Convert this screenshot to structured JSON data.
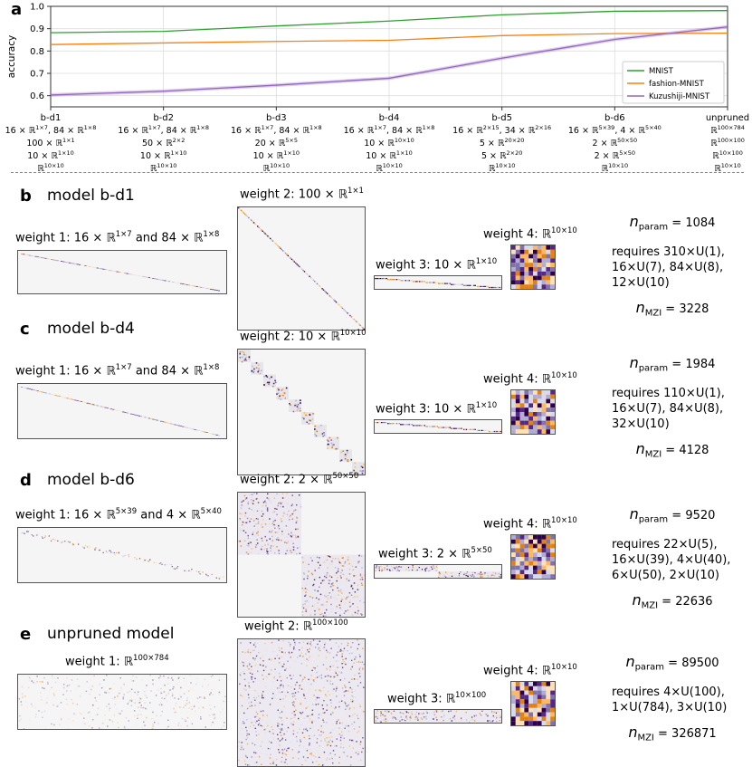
{
  "panel_a": {
    "letter": "a",
    "chart_data": {
      "type": "line",
      "ylabel": "accuracy",
      "ylim": [
        0.55,
        1.0
      ],
      "yticks": [
        "1.0",
        "0.9",
        "0.8",
        "0.7",
        "0.6"
      ],
      "categories": [
        "b-d1",
        "b-d2",
        "b-d3",
        "b-d4",
        "b-d5",
        "b-d6",
        "unpruned"
      ],
      "category_details": [
        [
          "16 × ℝ<sup>1×7</sup>, 84 × ℝ<sup>1×8</sup>",
          "100 × ℝ<sup>1×1</sup>",
          "10 × ℝ<sup>1×10</sup>",
          "ℝ<sup>10×10</sup>"
        ],
        [
          "16 × ℝ<sup>1×7</sup>, 84 × ℝ<sup>1×8</sup>",
          "50 × ℝ<sup>2×2</sup>",
          "10 × ℝ<sup>1×10</sup>",
          "ℝ<sup>10×10</sup>"
        ],
        [
          "16 × ℝ<sup>1×7</sup>, 84 × ℝ<sup>1×8</sup>",
          "20 × ℝ<sup>5×5</sup>",
          "10 × ℝ<sup>1×10</sup>",
          "ℝ<sup>10×10</sup>"
        ],
        [
          "16 × ℝ<sup>1×7</sup>, 84 × ℝ<sup>1×8</sup>",
          "10 × ℝ<sup>10×10</sup>",
          "10 × ℝ<sup>1×10</sup>",
          "ℝ<sup>10×10</sup>"
        ],
        [
          "16 × ℝ<sup>2×15</sup>, 34 × ℝ<sup>2×16</sup>",
          "5 × ℝ<sup>20×20</sup>",
          "5 × ℝ<sup>2×20</sup>",
          "ℝ<sup>10×10</sup>"
        ],
        [
          "16 × ℝ<sup>5×39</sup>, 4 × ℝ<sup>5×40</sup>",
          "2 × ℝ<sup>50×50</sup>",
          "2 × ℝ<sup>5×50</sup>",
          "ℝ<sup>10×10</sup>"
        ],
        [
          "ℝ<sup>100×784</sup>",
          "ℝ<sup>100×100</sup>",
          "ℝ<sup>10×100</sup>",
          "ℝ<sup>10×10</sup>"
        ]
      ],
      "series": [
        {
          "name": "MNIST",
          "color": "#2ca02c",
          "values": [
            0.882,
            0.888,
            0.912,
            0.934,
            0.962,
            0.978,
            0.981
          ]
        },
        {
          "name": "fashion-MNIST",
          "color": "#ff7f0e",
          "values": [
            0.829,
            0.836,
            0.843,
            0.848,
            0.869,
            0.878,
            0.88
          ]
        },
        {
          "name": "Kuzushiji-MNIST",
          "color": "#9467bd",
          "values": [
            0.603,
            0.62,
            0.647,
            0.678,
            0.768,
            0.852,
            0.908
          ]
        }
      ],
      "grid": true,
      "legend_position": "bottom-right"
    }
  },
  "rows": [
    {
      "letter": "b",
      "title": "model b-d1",
      "w1": "weight 1: 16 × ℝ<sup>1×7</sup> and 84 × ℝ<sup>1×8</sup>",
      "w2": "weight 2: 100 × ℝ<sup>1×1</sup>",
      "w3": "weight 3: 10 × ℝ<sup>1×10</sup>",
      "w4": "weight 4: ℝ<sup>10×10</sup>",
      "n_param_label": "n",
      "n_param_sub": "param",
      "n_param": "= 1084",
      "requires": [
        "requires 310×U(1),",
        "16×U(7), 84×U(8),",
        "12×U(10)"
      ],
      "n_mzi_label": "n",
      "n_mzi_sub": "MZI",
      "n_mzi": "= 3228"
    },
    {
      "letter": "c",
      "title": "model b-d4",
      "w1": "weight 1: 16 × ℝ<sup>1×7</sup> and 84 × ℝ<sup>1×8</sup>",
      "w2": "weight 2: 10 × ℝ<sup>10×10</sup>",
      "w3": "weight 3: 10 × ℝ<sup>1×10</sup>",
      "w4": "weight 4: ℝ<sup>10×10</sup>",
      "n_param_label": "n",
      "n_param_sub": "param",
      "n_param": "= 1984",
      "requires": [
        "requires 110×U(1),",
        "16×U(7), 84×U(8),",
        "32×U(10)"
      ],
      "n_mzi_label": "n",
      "n_mzi_sub": "MZI",
      "n_mzi": "= 4128"
    },
    {
      "letter": "d",
      "title": "model b-d6",
      "w1": "weight 1: 16 × ℝ<sup>5×39</sup> and 4 × ℝ<sup>5×40</sup>",
      "w2": "weight 2: 2 × ℝ<sup>50×50</sup>",
      "w3": "weight 3: 2 × ℝ<sup>5×50</sup>",
      "w4": "weight 4: ℝ<sup>10×10</sup>",
      "n_param_label": "n",
      "n_param_sub": "param",
      "n_param": "= 9520",
      "requires": [
        "requires 22×U(5),",
        "16×U(39), 4×U(40),",
        "6×U(50), 2×U(10)"
      ],
      "n_mzi_label": "n",
      "n_mzi_sub": "MZI",
      "n_mzi": "= 22636"
    },
    {
      "letter": "e",
      "title": "unpruned model",
      "w1": "weight 1: ℝ<sup>100×784</sup>",
      "w2": "weight 2: ℝ<sup>100×100</sup>",
      "w3": "weight 3: ℝ<sup>10×100</sup>",
      "w4": "weight 4: ℝ<sup>10×10</sup>",
      "n_param_label": "n",
      "n_param_sub": "param",
      "n_param": "= 89500",
      "requires": [
        "requires 4×U(100),",
        "1×U(784), 3×U(10)"
      ],
      "n_mzi_label": "n",
      "n_mzi_sub": "MZI",
      "n_mzi": "= 326871"
    }
  ]
}
